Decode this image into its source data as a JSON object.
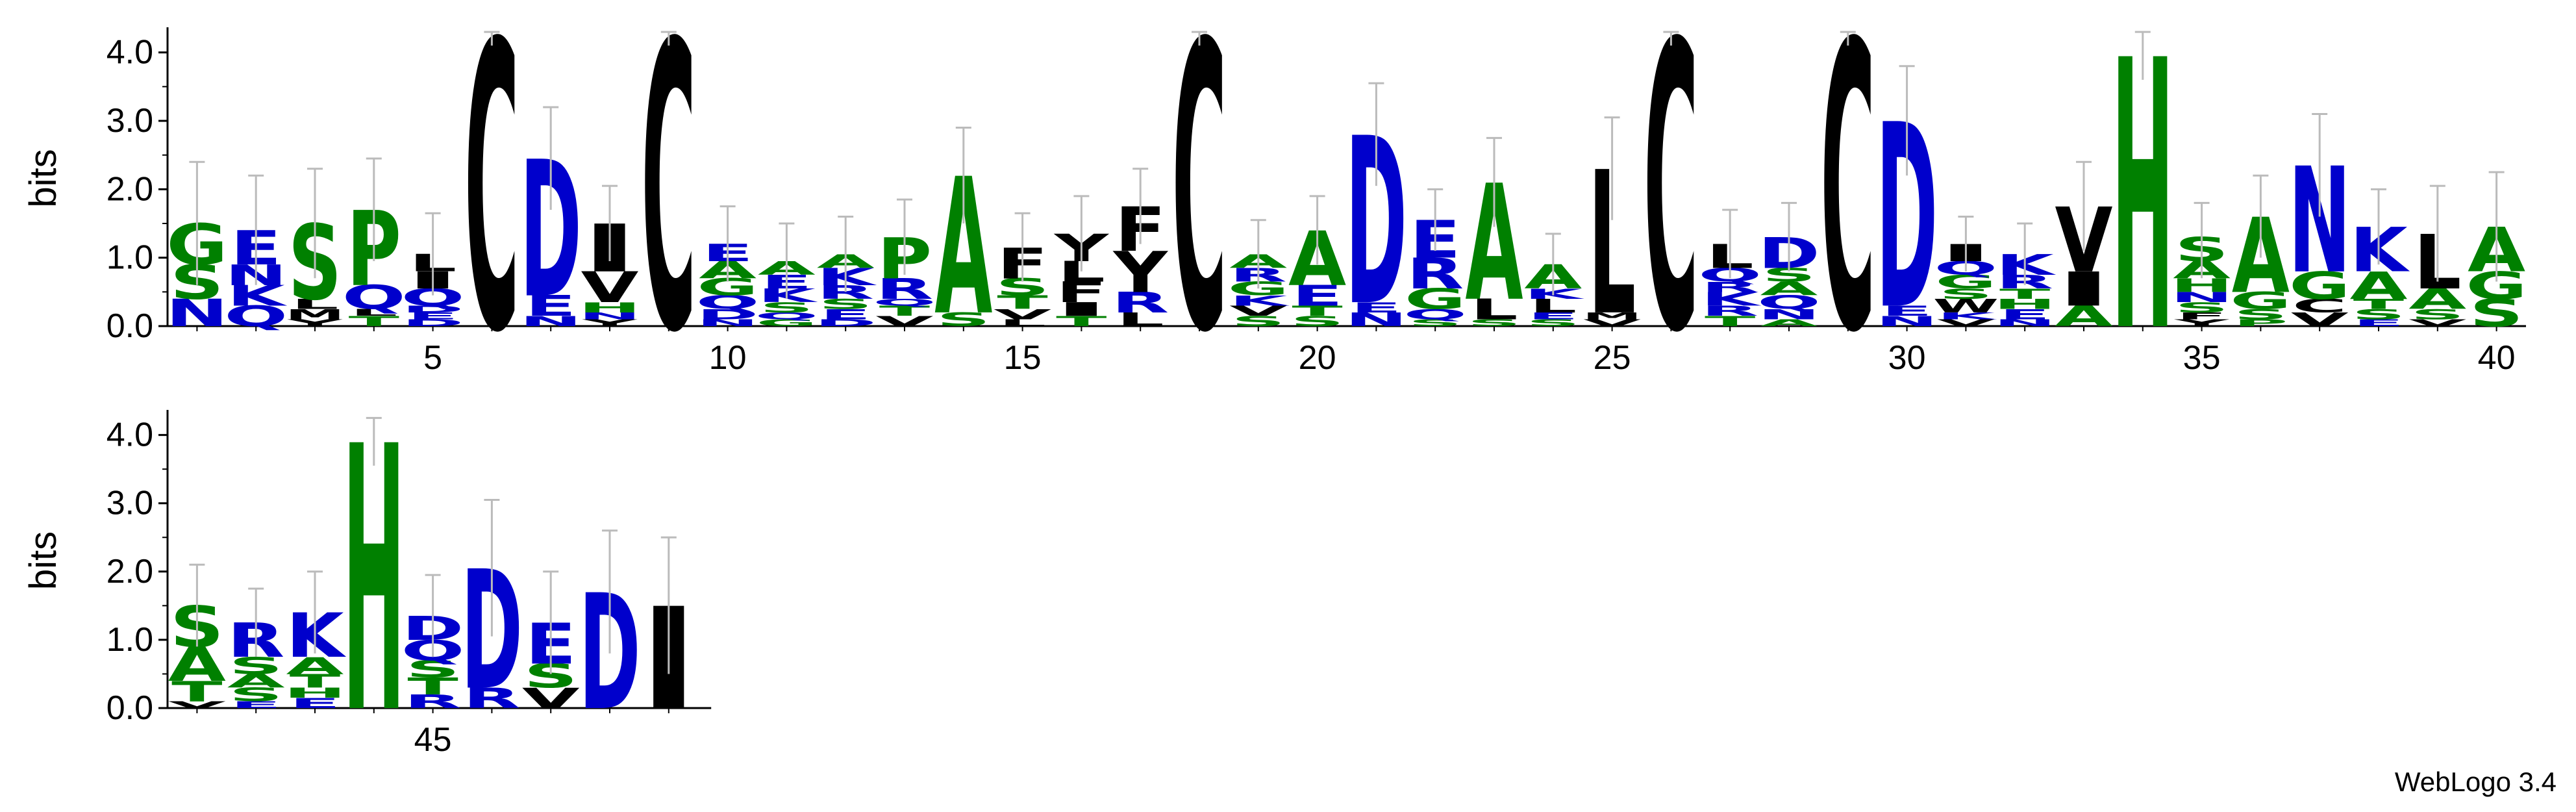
{
  "chart_data": {
    "type": "sequence-logo",
    "ylabel": "bits",
    "ylim": [
      0,
      4.32
    ],
    "yticks": [
      "0.0",
      "1.0",
      "2.0",
      "3.0",
      "4.0"
    ],
    "credit": "WebLogo 3.4",
    "colors": {
      "black": "#000000",
      "blue": "#0000cc",
      "green": "#008000",
      "error_bar": "#bbbbbb"
    },
    "rows": [
      {
        "start": 1,
        "end": 40,
        "xticks": [
          "5",
          "10",
          "15",
          "20",
          "25",
          "30",
          "35",
          "40"
        ]
      },
      {
        "start": 41,
        "end": 49,
        "xticks": [
          "45"
        ]
      }
    ],
    "positions": [
      {
        "pos": 1,
        "total": 1.5,
        "err": 0.9,
        "letters": [
          [
            "N",
            0.4
          ],
          [
            "S",
            0.5
          ],
          [
            "G",
            0.6
          ]
        ]
      },
      {
        "pos": 2,
        "total": 1.4,
        "err": 0.8,
        "letters": [
          [
            "Q",
            0.3
          ],
          [
            "K",
            0.3
          ],
          [
            "N",
            0.3
          ],
          [
            "E",
            0.5
          ]
        ]
      },
      {
        "pos": 3,
        "total": 1.5,
        "err": 0.8,
        "letters": [
          [
            "Y",
            0.1
          ],
          [
            "M",
            0.15
          ],
          [
            "L",
            0.15
          ],
          [
            "S",
            1.1
          ]
        ]
      },
      {
        "pos": 4,
        "total": 1.7,
        "err": 0.75,
        "letters": [
          [
            "T",
            0.15
          ],
          [
            "L",
            0.1
          ],
          [
            "Q",
            0.35
          ],
          [
            "P",
            1.1
          ]
        ]
      },
      {
        "pos": 5,
        "total": 1.05,
        "err": 0.6,
        "letters": [
          [
            "D",
            0.1
          ],
          [
            "E",
            0.1
          ],
          [
            "D",
            0.1
          ],
          [
            "Q",
            0.25
          ],
          [
            "I",
            0.25
          ],
          [
            "L",
            0.25
          ]
        ]
      },
      {
        "pos": 6,
        "total": 4.2,
        "err": 0.1,
        "letters": [
          [
            "C",
            4.2
          ]
        ]
      },
      {
        "pos": 7,
        "total": 2.45,
        "err": 0.75,
        "letters": [
          [
            "N",
            0.15
          ],
          [
            "E",
            0.3
          ],
          [
            "D",
            2.0
          ]
        ]
      },
      {
        "pos": 8,
        "total": 1.5,
        "err": 0.55,
        "letters": [
          [
            "Y",
            0.1
          ],
          [
            "N",
            0.1
          ],
          [
            "H",
            0.15
          ],
          [
            "V",
            0.45
          ],
          [
            "I",
            0.7
          ]
        ]
      },
      {
        "pos": 9,
        "total": 4.2,
        "err": 0.1,
        "letters": [
          [
            "C",
            4.2
          ]
        ]
      },
      {
        "pos": 10,
        "total": 1.2,
        "err": 0.55,
        "letters": [
          [
            "N",
            0.1
          ],
          [
            "D",
            0.15
          ],
          [
            "Q",
            0.2
          ],
          [
            "G",
            0.25
          ],
          [
            "A",
            0.25
          ],
          [
            "E",
            0.25
          ]
        ]
      },
      {
        "pos": 11,
        "total": 0.95,
        "err": 0.55,
        "letters": [
          [
            "G",
            0.1
          ],
          [
            "Q",
            0.1
          ],
          [
            "S",
            0.15
          ],
          [
            "K",
            0.2
          ],
          [
            "E",
            0.2
          ],
          [
            "A",
            0.2
          ]
        ]
      },
      {
        "pos": 12,
        "total": 1.05,
        "err": 0.55,
        "letters": [
          [
            "D",
            0.1
          ],
          [
            "E",
            0.15
          ],
          [
            "S",
            0.15
          ],
          [
            "R",
            0.2
          ],
          [
            "K",
            0.25
          ],
          [
            "A",
            0.2
          ]
        ]
      },
      {
        "pos": 13,
        "total": 1.3,
        "err": 0.55,
        "letters": [
          [
            "V",
            0.15
          ],
          [
            "T",
            0.15
          ],
          [
            "Q",
            0.1
          ],
          [
            "R",
            0.3
          ],
          [
            "P",
            0.6
          ]
        ]
      },
      {
        "pos": 14,
        "total": 2.2,
        "err": 0.7,
        "letters": [
          [
            "S",
            0.2
          ],
          [
            "A",
            2.0
          ]
        ]
      },
      {
        "pos": 15,
        "total": 1.15,
        "err": 0.5,
        "letters": [
          [
            "L",
            0.1
          ],
          [
            "V",
            0.15
          ],
          [
            "T",
            0.2
          ],
          [
            "S",
            0.25
          ],
          [
            "F",
            0.45
          ]
        ]
      },
      {
        "pos": 16,
        "total": 1.35,
        "err": 0.55,
        "letters": [
          [
            "T",
            0.15
          ],
          [
            "I",
            0.2
          ],
          [
            "F",
            0.3
          ],
          [
            "L",
            0.3
          ],
          [
            "Y",
            0.4
          ]
        ]
      },
      {
        "pos": 17,
        "total": 1.75,
        "err": 0.55,
        "letters": [
          [
            "L",
            0.2
          ],
          [
            "R",
            0.3
          ],
          [
            "Y",
            0.6
          ],
          [
            "F",
            0.65
          ]
        ]
      },
      {
        "pos": 18,
        "total": 4.2,
        "err": 0.1,
        "letters": [
          [
            "C",
            4.2
          ]
        ]
      },
      {
        "pos": 19,
        "total": 1.05,
        "err": 0.5,
        "letters": [
          [
            "S",
            0.15
          ],
          [
            "V",
            0.15
          ],
          [
            "K",
            0.15
          ],
          [
            "G",
            0.2
          ],
          [
            "R",
            0.2
          ],
          [
            "A",
            0.2
          ]
        ]
      },
      {
        "pos": 20,
        "total": 1.4,
        "err": 0.5,
        "letters": [
          [
            "S",
            0.15
          ],
          [
            "T",
            0.15
          ],
          [
            "E",
            0.3
          ],
          [
            "A",
            0.8
          ]
        ]
      },
      {
        "pos": 21,
        "total": 2.8,
        "err": 0.75,
        "letters": [
          [
            "N",
            0.2
          ],
          [
            "E",
            0.15
          ],
          [
            "D",
            2.45
          ]
        ]
      },
      {
        "pos": 22,
        "total": 1.55,
        "err": 0.45,
        "letters": [
          [
            "S",
            0.1
          ],
          [
            "Q",
            0.15
          ],
          [
            "G",
            0.3
          ],
          [
            "R",
            0.45
          ],
          [
            "E",
            0.55
          ]
        ]
      },
      {
        "pos": 23,
        "total": 2.1,
        "err": 0.65,
        "letters": [
          [
            "S",
            0.1
          ],
          [
            "L",
            0.3
          ],
          [
            "A",
            1.7
          ]
        ]
      },
      {
        "pos": 24,
        "total": 0.9,
        "err": 0.45,
        "letters": [
          [
            "S",
            0.1
          ],
          [
            "E",
            0.1
          ],
          [
            "L",
            0.2
          ],
          [
            "K",
            0.15
          ],
          [
            "A",
            0.35
          ]
        ]
      },
      {
        "pos": 25,
        "total": 2.3,
        "err": 0.75,
        "letters": [
          [
            "V",
            0.1
          ],
          [
            "M",
            0.1
          ],
          [
            "L",
            2.1
          ]
        ]
      },
      {
        "pos": 26,
        "total": 4.2,
        "err": 0.1,
        "letters": [
          [
            "C",
            4.2
          ]
        ]
      },
      {
        "pos": 27,
        "total": 1.2,
        "err": 0.5,
        "letters": [
          [
            "T",
            0.15
          ],
          [
            "R",
            0.15
          ],
          [
            "K",
            0.2
          ],
          [
            "R",
            0.15
          ],
          [
            "Q",
            0.2
          ],
          [
            "L",
            0.35
          ]
        ]
      },
      {
        "pos": 28,
        "total": 1.3,
        "err": 0.5,
        "letters": [
          [
            "A",
            0.1
          ],
          [
            "N",
            0.15
          ],
          [
            "Q",
            0.2
          ],
          [
            "A",
            0.2
          ],
          [
            "S",
            0.2
          ],
          [
            "D",
            0.45
          ]
        ]
      },
      {
        "pos": 29,
        "total": 4.2,
        "err": 0.1,
        "letters": [
          [
            "C",
            4.2
          ]
        ]
      },
      {
        "pos": 30,
        "total": 3.0,
        "err": 0.8,
        "letters": [
          [
            "N",
            0.15
          ],
          [
            "E",
            0.15
          ],
          [
            "D",
            2.7
          ]
        ]
      },
      {
        "pos": 31,
        "total": 1.2,
        "err": 0.4,
        "letters": [
          [
            "V",
            0.1
          ],
          [
            "K",
            0.1
          ],
          [
            "W",
            0.2
          ],
          [
            "S",
            0.15
          ],
          [
            "G",
            0.2
          ],
          [
            "Q",
            0.2
          ],
          [
            "I",
            0.25
          ]
        ]
      },
      {
        "pos": 32,
        "total": 1.05,
        "err": 0.45,
        "letters": [
          [
            "N",
            0.1
          ],
          [
            "E",
            0.15
          ],
          [
            "H",
            0.15
          ],
          [
            "T",
            0.15
          ],
          [
            "R",
            0.2
          ],
          [
            "K",
            0.3
          ]
        ]
      },
      {
        "pos": 33,
        "total": 1.75,
        "err": 0.65,
        "letters": [
          [
            "A",
            0.3
          ],
          [
            "I",
            0.5
          ],
          [
            "V",
            0.95
          ]
        ]
      },
      {
        "pos": 34,
        "total": 3.95,
        "err": 0.35,
        "letters": [
          [
            "H",
            3.95
          ]
        ]
      },
      {
        "pos": 35,
        "total": 1.25,
        "err": 0.55,
        "letters": [
          [
            "Y",
            0.1
          ],
          [
            "F",
            0.1
          ],
          [
            "S",
            0.15
          ],
          [
            "N",
            0.15
          ],
          [
            "H",
            0.2
          ],
          [
            "A",
            0.25
          ],
          [
            "S",
            0.35
          ]
        ]
      },
      {
        "pos": 36,
        "total": 1.6,
        "err": 0.6,
        "letters": [
          [
            "P",
            0.1
          ],
          [
            "S",
            0.15
          ],
          [
            "G",
            0.25
          ],
          [
            "A",
            1.1
          ]
        ]
      },
      {
        "pos": 37,
        "total": 2.35,
        "err": 0.75,
        "letters": [
          [
            "V",
            0.2
          ],
          [
            "C",
            0.2
          ],
          [
            "G",
            0.4
          ],
          [
            "N",
            1.55
          ]
        ]
      },
      {
        "pos": 38,
        "total": 1.45,
        "err": 0.55,
        "letters": [
          [
            "E",
            0.1
          ],
          [
            "S",
            0.15
          ],
          [
            "T",
            0.15
          ],
          [
            "A",
            0.4
          ],
          [
            "K",
            0.65
          ]
        ]
      },
      {
        "pos": 39,
        "total": 1.35,
        "err": 0.7,
        "letters": [
          [
            "V",
            0.1
          ],
          [
            "S",
            0.15
          ],
          [
            "A",
            0.3
          ],
          [
            "L",
            0.8
          ]
        ]
      },
      {
        "pos": 40,
        "total": 1.45,
        "err": 0.8,
        "letters": [
          [
            "S",
            0.4
          ],
          [
            "G",
            0.4
          ],
          [
            "A",
            0.65
          ]
        ]
      },
      {
        "pos": 41,
        "total": 1.5,
        "err": 0.6,
        "letters": [
          [
            "V",
            0.1
          ],
          [
            "T",
            0.3
          ],
          [
            "A",
            0.5
          ],
          [
            "S",
            0.6
          ]
        ]
      },
      {
        "pos": 42,
        "total": 1.25,
        "err": 0.5,
        "letters": [
          [
            "E",
            0.1
          ],
          [
            "S",
            0.2
          ],
          [
            "A",
            0.2
          ],
          [
            "S",
            0.25
          ],
          [
            "R",
            0.5
          ]
        ]
      },
      {
        "pos": 43,
        "total": 1.4,
        "err": 0.6,
        "letters": [
          [
            "E",
            0.15
          ],
          [
            "H",
            0.15
          ],
          [
            "T",
            0.2
          ],
          [
            "A",
            0.25
          ],
          [
            "K",
            0.65
          ]
        ]
      },
      {
        "pos": 44,
        "total": 3.9,
        "err": 0.35,
        "letters": [
          [
            "H",
            3.9
          ]
        ]
      },
      {
        "pos": 45,
        "total": 1.35,
        "err": 0.6,
        "letters": [
          [
            "R",
            0.2
          ],
          [
            "T",
            0.25
          ],
          [
            "S",
            0.25
          ],
          [
            "Q",
            0.3
          ],
          [
            "D",
            0.35
          ]
        ]
      },
      {
        "pos": 46,
        "total": 2.05,
        "err": 1.0,
        "letters": [
          [
            "R",
            0.3
          ],
          [
            "D",
            1.75
          ]
        ]
      },
      {
        "pos": 47,
        "total": 1.25,
        "err": 0.75,
        "letters": [
          [
            "V",
            0.3
          ],
          [
            "S",
            0.35
          ],
          [
            "E",
            0.6
          ]
        ]
      },
      {
        "pos": 48,
        "total": 1.7,
        "err": 0.9,
        "letters": [
          [
            "D",
            1.7
          ]
        ]
      },
      {
        "pos": 49,
        "total": 1.5,
        "err": 1.0,
        "letters": [
          [
            "I",
            1.5
          ]
        ]
      }
    ]
  }
}
